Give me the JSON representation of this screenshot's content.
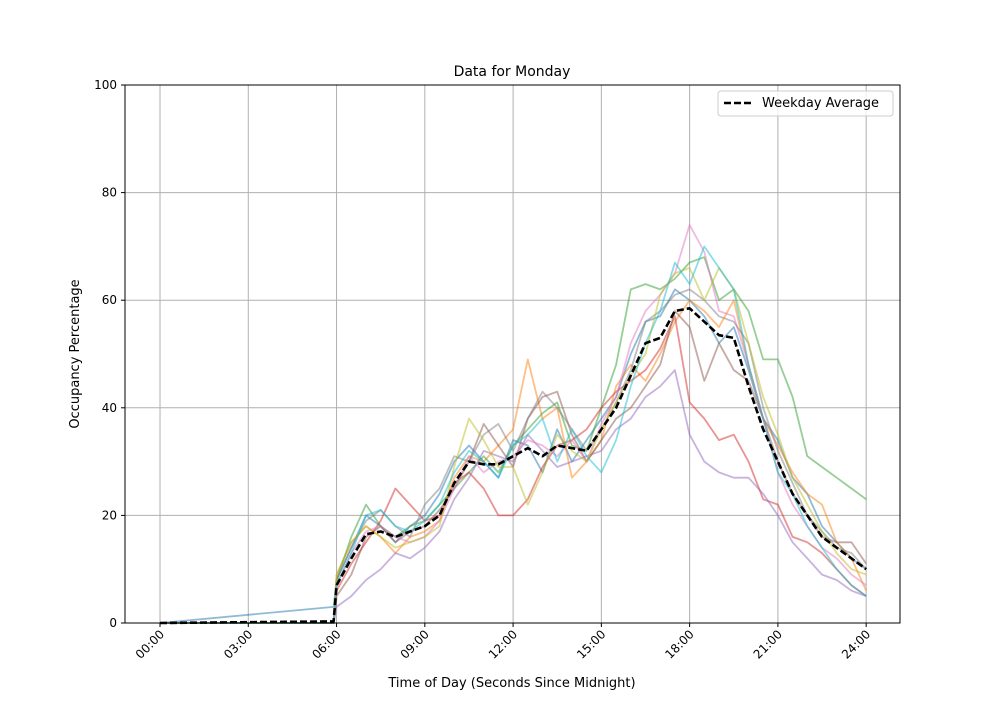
{
  "chart_data": {
    "type": "line",
    "title": "Data for Monday",
    "xlabel": "Time of Day (Seconds Since Midnight)",
    "ylabel": "Occupancy Percentage",
    "xlim_hours": [
      -1.19,
      25.15
    ],
    "ylim": [
      0,
      100
    ],
    "grid": true,
    "legend_placement": "top-right",
    "x_ticks": [
      {
        "h": 0,
        "label": "00:00"
      },
      {
        "h": 3,
        "label": "03:00"
      },
      {
        "h": 6,
        "label": "06:00"
      },
      {
        "h": 9,
        "label": "09:00"
      },
      {
        "h": 12,
        "label": "12:00"
      },
      {
        "h": 15,
        "label": "15:00"
      },
      {
        "h": 18,
        "label": "18:00"
      },
      {
        "h": 21,
        "label": "21:00"
      },
      {
        "h": 24,
        "label": "24:00"
      }
    ],
    "y_ticks": [
      0,
      20,
      40,
      60,
      80,
      100
    ],
    "x_hours": [
      0,
      5.9,
      6,
      6.5,
      7,
      7.5,
      8,
      8.5,
      9,
      9.5,
      10,
      10.5,
      11,
      11.5,
      12,
      12.5,
      13,
      13.5,
      14,
      14.5,
      15,
      15.5,
      16,
      16.5,
      17,
      17.5,
      18,
      18.5,
      19,
      19.5,
      20,
      20.5,
      21,
      21.5,
      22,
      22.5,
      23,
      23.5,
      24
    ],
    "individual_series": [
      {
        "color": "#1f77b4",
        "values": [
          0,
          3,
          8,
          14,
          20,
          18,
          15,
          18,
          20,
          24,
          30,
          33,
          30,
          27,
          34,
          33,
          28,
          36,
          30,
          34,
          38,
          42,
          50,
          56,
          57,
          62,
          60,
          57,
          52,
          55,
          47,
          38,
          34,
          27,
          24,
          18,
          15,
          12,
          10
        ]
      },
      {
        "color": "#ff7f0e",
        "values": [
          0,
          0,
          9,
          15,
          18,
          16,
          13,
          16,
          17,
          19,
          27,
          31,
          30,
          33,
          36,
          49,
          38,
          40,
          27,
          30,
          34,
          44,
          48,
          45,
          50,
          56,
          60,
          58,
          55,
          60,
          48,
          38,
          33,
          28,
          24,
          22,
          15,
          12,
          6
        ]
      },
      {
        "color": "#2ca02c",
        "values": [
          0,
          0,
          8,
          16,
          22,
          18,
          16,
          18,
          19,
          22,
          25,
          28,
          31,
          28,
          33,
          36,
          39,
          41,
          33,
          32,
          40,
          48,
          62,
          63,
          62,
          64,
          67,
          68,
          60,
          62,
          58,
          49,
          49,
          42,
          31,
          29,
          27,
          25,
          23
        ]
      },
      {
        "color": "#d62728",
        "values": [
          0,
          0,
          6,
          11,
          15,
          19,
          25,
          22,
          19,
          20,
          26,
          28,
          25,
          20,
          20,
          23,
          29,
          33,
          34,
          36,
          40,
          43,
          45,
          47,
          51,
          57,
          41,
          38,
          34,
          35,
          30,
          23,
          22,
          16,
          15,
          13,
          10,
          7,
          5
        ]
      },
      {
        "color": "#9467bd",
        "values": [
          0,
          0,
          3,
          5,
          8,
          10,
          13,
          12,
          14,
          17,
          23,
          27,
          32,
          31,
          30,
          35,
          32,
          29,
          30,
          31,
          32,
          36,
          38,
          42,
          44,
          47,
          35,
          30,
          28,
          27,
          27,
          24,
          20,
          15,
          12,
          9,
          8,
          6,
          5
        ]
      },
      {
        "color": "#8c564b",
        "values": [
          0,
          0,
          5,
          9,
          16,
          18,
          15,
          17,
          18,
          21,
          25,
          30,
          37,
          33,
          29,
          38,
          42,
          43,
          35,
          30,
          34,
          38,
          40,
          44,
          48,
          58,
          55,
          45,
          52,
          47,
          45,
          38,
          30,
          24,
          20,
          16,
          15,
          15,
          11
        ]
      },
      {
        "color": "#e377c2",
        "values": [
          0,
          0,
          7,
          13,
          17,
          18,
          16,
          15,
          16,
          19,
          25,
          31,
          28,
          30,
          31,
          34,
          33,
          31,
          34,
          30,
          37,
          42,
          52,
          58,
          61,
          65,
          74,
          69,
          58,
          57,
          48,
          38,
          28,
          22,
          18,
          14,
          12,
          9,
          7
        ]
      },
      {
        "color": "#7f7f7f",
        "values": [
          0,
          0,
          8,
          14,
          19,
          21,
          18,
          16,
          22,
          25,
          31,
          30,
          35,
          37,
          32,
          38,
          43,
          40,
          36,
          32,
          36,
          41,
          47,
          56,
          58,
          61,
          62,
          60,
          57,
          56,
          52,
          40,
          32,
          26,
          20,
          17,
          14,
          13,
          10
        ]
      },
      {
        "color": "#bcbd22",
        "values": [
          0,
          0,
          9,
          15,
          18,
          16,
          14,
          15,
          16,
          18,
          29,
          38,
          34,
          29,
          29,
          22,
          28,
          35,
          32,
          30,
          36,
          41,
          46,
          50,
          61,
          65,
          66,
          60,
          66,
          62,
          52,
          42,
          35,
          27,
          22,
          17,
          13,
          10,
          9
        ]
      },
      {
        "color": "#17becf",
        "values": [
          0,
          0,
          7,
          13,
          20,
          21,
          18,
          17,
          19,
          22,
          28,
          32,
          30,
          27,
          33,
          35,
          38,
          30,
          36,
          31,
          28,
          34,
          44,
          52,
          58,
          67,
          63,
          70,
          66,
          62,
          48,
          38,
          28,
          24,
          18,
          14,
          10,
          7,
          5
        ]
      }
    ],
    "average_series": {
      "name": "Weekday Average",
      "color": "#000000",
      "values": [
        0,
        0.3,
        7,
        12,
        16.5,
        17,
        16,
        17,
        18,
        20,
        26,
        30,
        29.5,
        29.5,
        31,
        32.5,
        31,
        33,
        32.5,
        32,
        36,
        40,
        46,
        52,
        53,
        58,
        58.5,
        56,
        53.5,
        53,
        44,
        36,
        30,
        24,
        20,
        16,
        14,
        12,
        10
      ]
    }
  }
}
